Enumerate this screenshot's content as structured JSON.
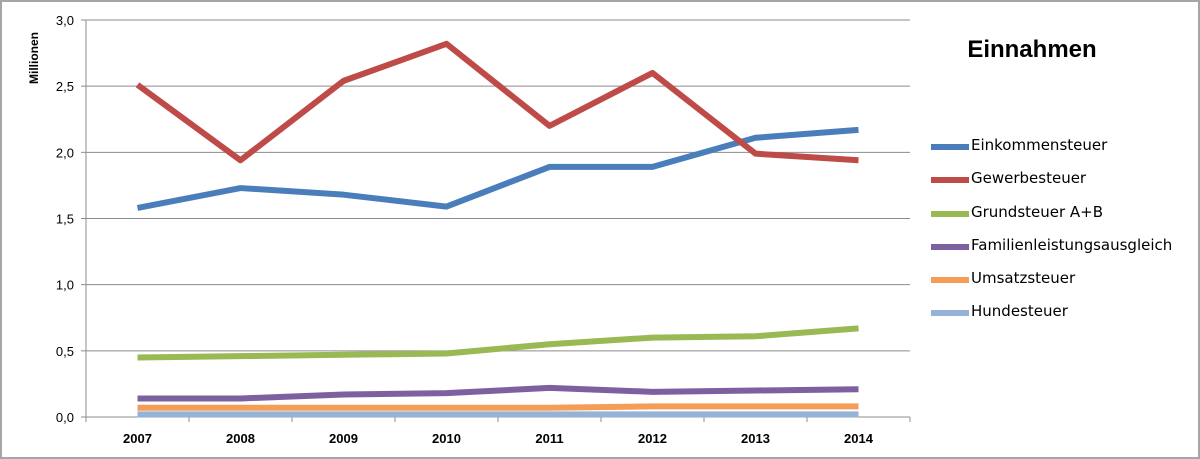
{
  "chart_data": {
    "type": "line",
    "title": "Einnahmen",
    "xlabel": "",
    "ylabel": "Millionen",
    "ylim": [
      0,
      3.0
    ],
    "yticks": [
      "0,0",
      "0,5",
      "1,0",
      "1,5",
      "2,0",
      "2,5",
      "3,0"
    ],
    "categories": [
      "2007",
      "2008",
      "2009",
      "2010",
      "2011",
      "2012",
      "2013",
      "2014"
    ],
    "grid": "horizontal",
    "legend_position": "right",
    "series": [
      {
        "name": "Einkommensteuer",
        "color": "#4a7ebb",
        "values": [
          1.58,
          1.73,
          1.68,
          1.59,
          1.89,
          1.89,
          2.11,
          2.17
        ]
      },
      {
        "name": "Gewerbesteuer",
        "color": "#be4b48",
        "values": [
          2.51,
          1.94,
          2.54,
          2.82,
          2.2,
          2.6,
          1.99,
          1.94
        ]
      },
      {
        "name": "Grundsteuer A+B",
        "color": "#98b954",
        "values": [
          0.45,
          0.46,
          0.47,
          0.48,
          0.55,
          0.6,
          0.61,
          0.67
        ]
      },
      {
        "name": "Familienleistungsausgleich",
        "color": "#7d60a0",
        "values": [
          0.14,
          0.14,
          0.17,
          0.18,
          0.22,
          0.19,
          0.2,
          0.21
        ]
      },
      {
        "name": "Umsatzsteuer",
        "color": "#f59d56",
        "values": [
          0.07,
          0.07,
          0.07,
          0.07,
          0.07,
          0.08,
          0.08,
          0.08
        ]
      },
      {
        "name": "Hundesteuer",
        "color": "#95b3d7",
        "values": [
          0.02,
          0.02,
          0.02,
          0.02,
          0.02,
          0.02,
          0.02,
          0.02
        ]
      }
    ]
  }
}
